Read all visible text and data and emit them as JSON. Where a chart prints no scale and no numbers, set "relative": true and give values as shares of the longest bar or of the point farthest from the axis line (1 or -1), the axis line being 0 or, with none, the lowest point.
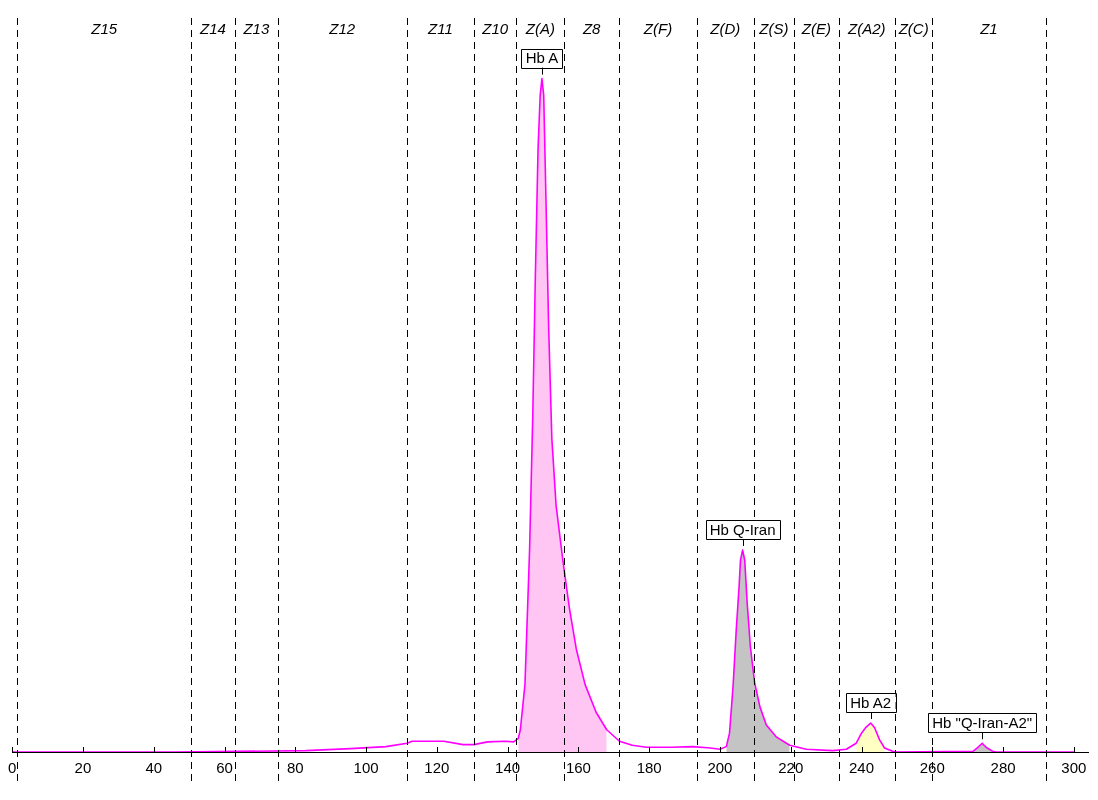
{
  "chart_data": {
    "type": "line",
    "relative": true,
    "tick_labels": "x",
    "xlim": [
      0,
      304
    ],
    "xticks": [
      0,
      20,
      40,
      60,
      80,
      100,
      120,
      140,
      160,
      180,
      200,
      220,
      240,
      260,
      280,
      300
    ],
    "series": [
      {
        "color": "#ff00ff",
        "x": [
          0,
          46,
          83,
          95.6,
          105.6,
          111.6,
          113,
          122,
          127.4,
          130.5,
          134.3,
          139.2,
          141.7,
          143,
          143.6,
          144.9,
          146.2,
          147.1,
          147.8,
          148.6,
          149.2,
          149.7,
          150.2,
          150.8,
          151.6,
          152.5,
          153.7,
          155.6,
          157.5,
          159.4,
          161.9,
          165,
          168,
          171.6,
          175.2,
          179.2,
          186.3,
          192.3,
          197.3,
          200,
          201.8,
          202.7,
          203.7,
          204.6,
          205.4,
          205.8,
          206.4,
          207,
          207.7,
          208.6,
          209.8,
          211.3,
          213.1,
          216,
          219.7,
          224.4,
          231.9,
          235.7,
          238.5,
          240,
          241.3,
          242.6,
          243.7,
          245.1,
          246.5,
          248.8,
          249.8,
          271.5,
          272.9,
          274.1,
          275.2,
          277.1,
          278,
          300
        ],
        "values": [
          0,
          0,
          0.002,
          0.005,
          0.008,
          0.013,
          0.016,
          0.016,
          0.011,
          0.011,
          0.015,
          0.016,
          0.015,
          0.02,
          0.033,
          0.1,
          0.299,
          0.498,
          0.697,
          0.896,
          0.975,
          1,
          0.975,
          0.829,
          0.63,
          0.465,
          0.366,
          0.285,
          0.212,
          0.153,
          0.1,
          0.059,
          0.033,
          0.016,
          0.01,
          0.007,
          0.007,
          0.008,
          0.006,
          0.004,
          0.008,
          0.028,
          0.097,
          0.181,
          0.245,
          0.285,
          0.3,
          0.285,
          0.221,
          0.156,
          0.103,
          0.067,
          0.04,
          0.022,
          0.01,
          0.004,
          0.002,
          0.004,
          0.013,
          0.028,
          0.037,
          0.043,
          0.036,
          0.018,
          0.006,
          0.001,
          0,
          0.001,
          0.007,
          0.013,
          0.007,
          0.001,
          0,
          0
        ]
      },
      {
        "type": "area",
        "color": "#ffc6f3",
        "x": [
          143,
          143.6,
          144.9,
          146.2,
          147.1,
          147.8,
          148.6,
          149.2,
          149.7,
          150.2,
          150.8,
          151.6,
          152.5,
          153.7,
          155.6,
          157.5,
          159.4,
          161.9,
          165,
          168
        ],
        "values": [
          0.02,
          0.033,
          0.1,
          0.299,
          0.498,
          0.697,
          0.896,
          0.975,
          1,
          0.975,
          0.829,
          0.63,
          0.465,
          0.366,
          0.285,
          0.212,
          0.153,
          0.1,
          0.059,
          0.033
        ]
      },
      {
        "type": "area",
        "color": "#c4c4c4",
        "x": [
          201.8,
          202.7,
          203.7,
          204.6,
          205.4,
          205.8,
          206.4,
          207,
          207.7,
          208.6,
          209.8,
          211.3,
          213.1,
          216,
          219.7
        ],
        "values": [
          0.008,
          0.028,
          0.097,
          0.181,
          0.245,
          0.285,
          0.3,
          0.285,
          0.221,
          0.156,
          0.103,
          0.067,
          0.04,
          0.022,
          0.01
        ]
      },
      {
        "type": "area",
        "color": "#ffffc4",
        "x": [
          238.5,
          240,
          241.3,
          242.6,
          243.7,
          245.1,
          246.5
        ],
        "values": [
          0.013,
          0.028,
          0.037,
          0.043,
          0.036,
          0.018,
          0.006
        ]
      },
      {
        "type": "area",
        "color": "#c4c4c4",
        "x": [
          271.5,
          272.9,
          274.1,
          275.2,
          277.1
        ],
        "values": [
          0.001,
          0.007,
          0.013,
          0.007,
          0.001
        ]
      }
    ],
    "ref_lines": [
      {
        "axis": "x",
        "value": 1.5,
        "color": "#000000",
        "line_style": "dashed"
      },
      {
        "axis": "x",
        "value": 50.5,
        "color": "#000000",
        "line_style": "dashed"
      },
      {
        "axis": "x",
        "value": 63,
        "color": "#000000",
        "line_style": "dashed"
      },
      {
        "axis": "x",
        "value": 75,
        "color": "#000000",
        "line_style": "dashed"
      },
      {
        "axis": "x",
        "value": 111.5,
        "color": "#000000",
        "line_style": "dashed"
      },
      {
        "axis": "x",
        "value": 130.5,
        "color": "#000000",
        "line_style": "dashed"
      },
      {
        "axis": "x",
        "value": 142.5,
        "color": "#000000",
        "line_style": "dashed"
      },
      {
        "axis": "x",
        "value": 156,
        "color": "#000000",
        "line_style": "dashed"
      },
      {
        "axis": "x",
        "value": 171.5,
        "color": "#000000",
        "line_style": "dashed"
      },
      {
        "axis": "x",
        "value": 193.5,
        "color": "#000000",
        "line_style": "dashed"
      },
      {
        "axis": "x",
        "value": 209.5,
        "color": "#000000",
        "line_style": "dashed"
      },
      {
        "axis": "x",
        "value": 221,
        "color": "#000000",
        "line_style": "dashed"
      },
      {
        "axis": "x",
        "value": 233.5,
        "color": "#000000",
        "line_style": "dashed"
      },
      {
        "axis": "x",
        "value": 249.5,
        "color": "#000000",
        "line_style": "dashed"
      },
      {
        "axis": "x",
        "value": 260,
        "color": "#000000",
        "line_style": "dashed"
      },
      {
        "axis": "x",
        "value": 292,
        "color": "#000000",
        "line_style": "dashed"
      }
    ],
    "annotations": [
      "Z15",
      "Z14",
      "Z13",
      "Z12",
      "Z11",
      "Z10",
      "Z(A)",
      "Z8",
      "Z(F)",
      "Z(D)",
      "Z(S)",
      "Z(E)",
      "Z(A2)",
      "Z(C)",
      "Z1",
      {
        "text": "Hb A",
        "x": 149.7,
        "y": 1
      },
      {
        "text": "Hb Q-Iran",
        "x": 206.4,
        "y": 0.3
      },
      {
        "text": "Hb A2",
        "x": 242.6,
        "y": 0.043
      },
      {
        "text": "Hb \"Q-Iran-A2\"",
        "x": 274.1,
        "y": 0.013
      }
    ]
  }
}
